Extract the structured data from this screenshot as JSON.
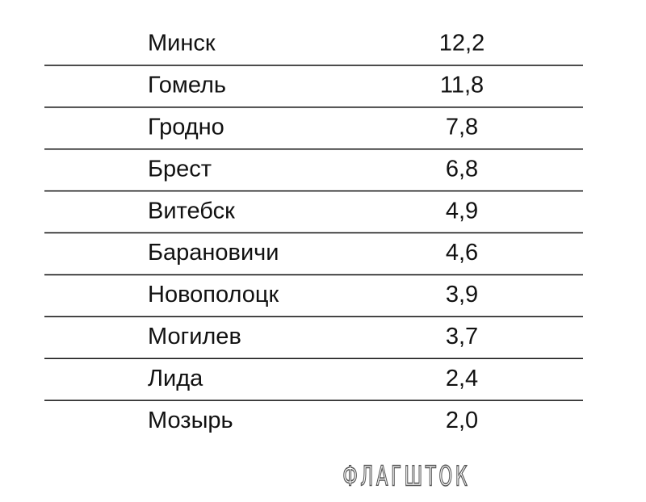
{
  "table": {
    "rows": [
      [
        "Минск",
        "12,2"
      ],
      [
        "Гомель",
        "11,8"
      ],
      [
        "Гродно",
        "7,8"
      ],
      [
        "Брест",
        "6,8"
      ],
      [
        "Витебск",
        "4,9"
      ],
      [
        "Барановичи",
        "4,6"
      ],
      [
        "Новополоцк",
        "3,9"
      ],
      [
        "Могилев",
        "3,7"
      ],
      [
        "Лида",
        "2,4"
      ],
      [
        "Мозырь",
        "2,0"
      ]
    ]
  },
  "watermark": "ФЛАГШТОК"
}
